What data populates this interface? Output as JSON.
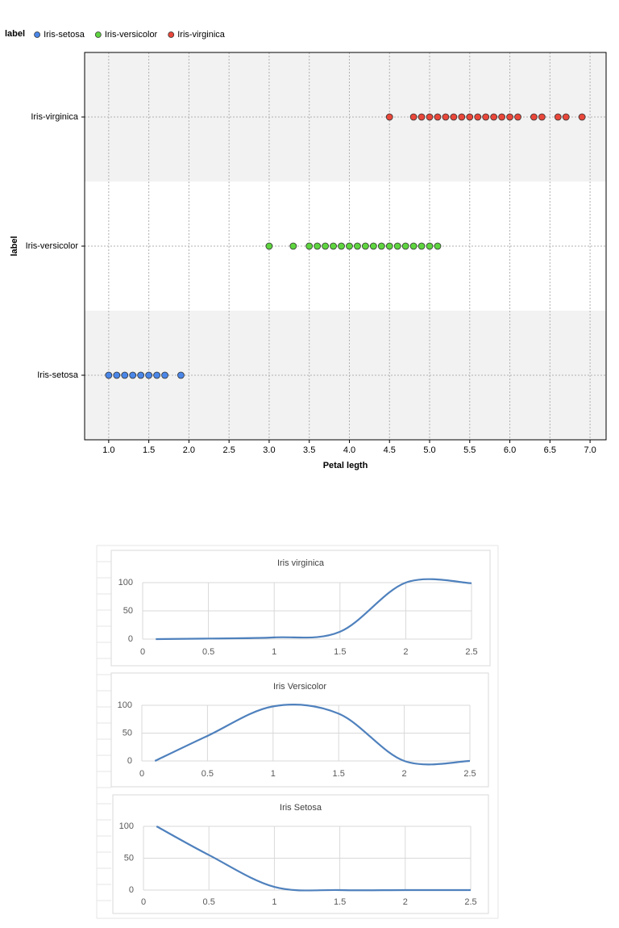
{
  "chart_data": [
    {
      "type": "scatter",
      "legend_title": "label",
      "x_label": "Petal legth",
      "y_label": "label",
      "grid": true,
      "categories": [
        "Iris-setosa",
        "Iris-versicolor",
        "Iris-virginica"
      ],
      "series": [
        {
          "name": "Iris-setosa",
          "color": "#4a86e8",
          "values": [
            1.0,
            1.1,
            1.2,
            1.3,
            1.4,
            1.5,
            1.6,
            1.7,
            1.9
          ]
        },
        {
          "name": "Iris-versicolor",
          "color": "#5ed43f",
          "values": [
            3.0,
            3.3,
            3.5,
            3.6,
            3.7,
            3.8,
            3.9,
            4.0,
            4.1,
            4.2,
            4.3,
            4.4,
            4.5,
            4.6,
            4.7,
            4.8,
            4.9,
            5.0,
            5.1
          ]
        },
        {
          "name": "Iris-virginica",
          "color": "#e8473a",
          "values": [
            4.5,
            4.8,
            4.9,
            5.0,
            5.1,
            5.2,
            5.3,
            5.4,
            5.5,
            5.6,
            5.7,
            5.8,
            5.9,
            6.0,
            6.1,
            6.3,
            6.4,
            6.6,
            6.7,
            6.9
          ]
        }
      ],
      "xlim": [
        0.7,
        7.2
      ],
      "xticks": [
        {
          "value": 1,
          "label": "1.0"
        },
        1.5,
        {
          "value": 2,
          "label": "2.0"
        },
        2.5,
        {
          "value": 3,
          "label": "3.0"
        },
        3.5,
        {
          "value": 4,
          "label": "4.0"
        },
        4.5,
        {
          "value": 5,
          "label": "5.0"
        },
        5.5,
        {
          "value": 6,
          "label": "6.0"
        },
        6.5,
        {
          "value": 7,
          "label": "7.0"
        }
      ]
    },
    {
      "type": "line",
      "title": "Iris virginica",
      "color": "#4f81bd",
      "grid": true,
      "x": [
        0.1,
        0.5,
        1,
        1.5,
        2,
        2.5
      ],
      "values": [
        0,
        1,
        3,
        13,
        100,
        99
      ],
      "xlim": [
        0,
        2.5
      ],
      "xticks": [
        0,
        0.5,
        1,
        1.5,
        2,
        2.5
      ],
      "ylim": [
        0,
        100
      ],
      "yticks": [
        0,
        50,
        100
      ]
    },
    {
      "type": "line",
      "title": "Iris Versicolor",
      "color": "#4f81bd",
      "grid": true,
      "x": [
        0.1,
        0.5,
        1,
        1.5,
        2,
        2.5
      ],
      "values": [
        0,
        45,
        98,
        85,
        0,
        0
      ],
      "xlim": [
        0,
        2.5
      ],
      "xticks": [
        0,
        0.5,
        1,
        1.5,
        2,
        2.5
      ],
      "ylim": [
        0,
        100
      ],
      "yticks": [
        0,
        50,
        100
      ]
    },
    {
      "type": "line",
      "title": "Iris Setosa",
      "color": "#4f81bd",
      "grid": true,
      "x": [
        0.1,
        0.5,
        1,
        1.5,
        2,
        2.5
      ],
      "values": [
        100,
        55,
        5,
        0,
        0,
        0
      ],
      "xlim": [
        0,
        2.5
      ],
      "xticks": [
        0,
        0.5,
        1,
        1.5,
        2,
        2.5
      ],
      "ylim": [
        0,
        100
      ],
      "yticks": [
        0,
        50,
        100
      ]
    }
  ]
}
